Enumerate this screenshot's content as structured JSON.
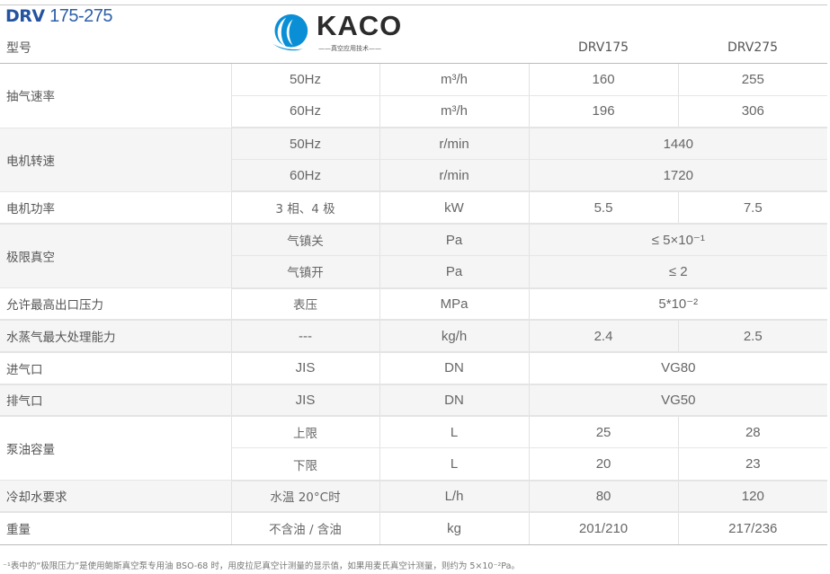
{
  "title": {
    "bold": "DRV",
    "rest": "175-275"
  },
  "header": {
    "model_label": "型号",
    "models": [
      "DRV175",
      "DRV275"
    ]
  },
  "groups": [
    {
      "label": "抽气速率",
      "rows": [
        {
          "sub": "50Hz",
          "unit": "m³/h",
          "values": [
            "160",
            "255"
          ]
        },
        {
          "sub": "60Hz",
          "unit": "m³/h",
          "values": [
            "196",
            "306"
          ]
        }
      ]
    },
    {
      "label": "电机转速",
      "rows": [
        {
          "sub": "50Hz",
          "unit": "r/min",
          "merged": "1440"
        },
        {
          "sub": "60Hz",
          "unit": "r/min",
          "merged": "1720"
        }
      ]
    },
    {
      "label": "电机功率",
      "rows": [
        {
          "sub": "3 相、4 极",
          "unit": "kW",
          "values": [
            "5.5",
            "7.5"
          ]
        }
      ]
    },
    {
      "label": "极限真空",
      "rows": [
        {
          "sub": "气镇关",
          "unit": "Pa",
          "merged": "≤ 5×10⁻¹"
        },
        {
          "sub": "气镇开",
          "unit": "Pa",
          "merged": "≤ 2"
        }
      ]
    },
    {
      "label": "允许最高出口压力",
      "rows": [
        {
          "sub": "表压",
          "unit": "MPa",
          "merged": "5*10⁻²"
        }
      ]
    },
    {
      "label": "水蒸气最大处理能力",
      "rows": [
        {
          "sub": "---",
          "unit": "kg/h",
          "values": [
            "2.4",
            "2.5"
          ]
        }
      ]
    },
    {
      "label": "进气口",
      "rows": [
        {
          "sub": "JIS",
          "unit": "DN",
          "merged": "VG80"
        }
      ]
    },
    {
      "label": "排气口",
      "rows": [
        {
          "sub": "JIS",
          "unit": "DN",
          "merged": "VG50"
        }
      ]
    },
    {
      "label": "泵油容量",
      "rows": [
        {
          "sub": "上限",
          "unit": "L",
          "values": [
            "25",
            "28"
          ]
        },
        {
          "sub": "下限",
          "unit": "L",
          "values": [
            "20",
            "23"
          ]
        }
      ]
    },
    {
      "label": "冷却水要求",
      "rows": [
        {
          "sub": "水温 20°C时",
          "unit": "L/h",
          "values": [
            "80",
            "120"
          ]
        }
      ]
    },
    {
      "label": "重量",
      "rows": [
        {
          "sub": "不含油 / 含油",
          "unit": "kg",
          "values": [
            "201/210",
            "217/236"
          ]
        }
      ]
    }
  ],
  "footnote": "⁻¹表中的“极限压力”是使用鲍斯真空泵专用油 BSO-68 时，用皮拉尼真空计测量的显示值，如果用麦氏真空计测量，则约为 5×10⁻²Pa。",
  "watermark": {
    "brand": "KACO",
    "tagline": "——真空应用技术——",
    "color": "#0a8fd6"
  }
}
